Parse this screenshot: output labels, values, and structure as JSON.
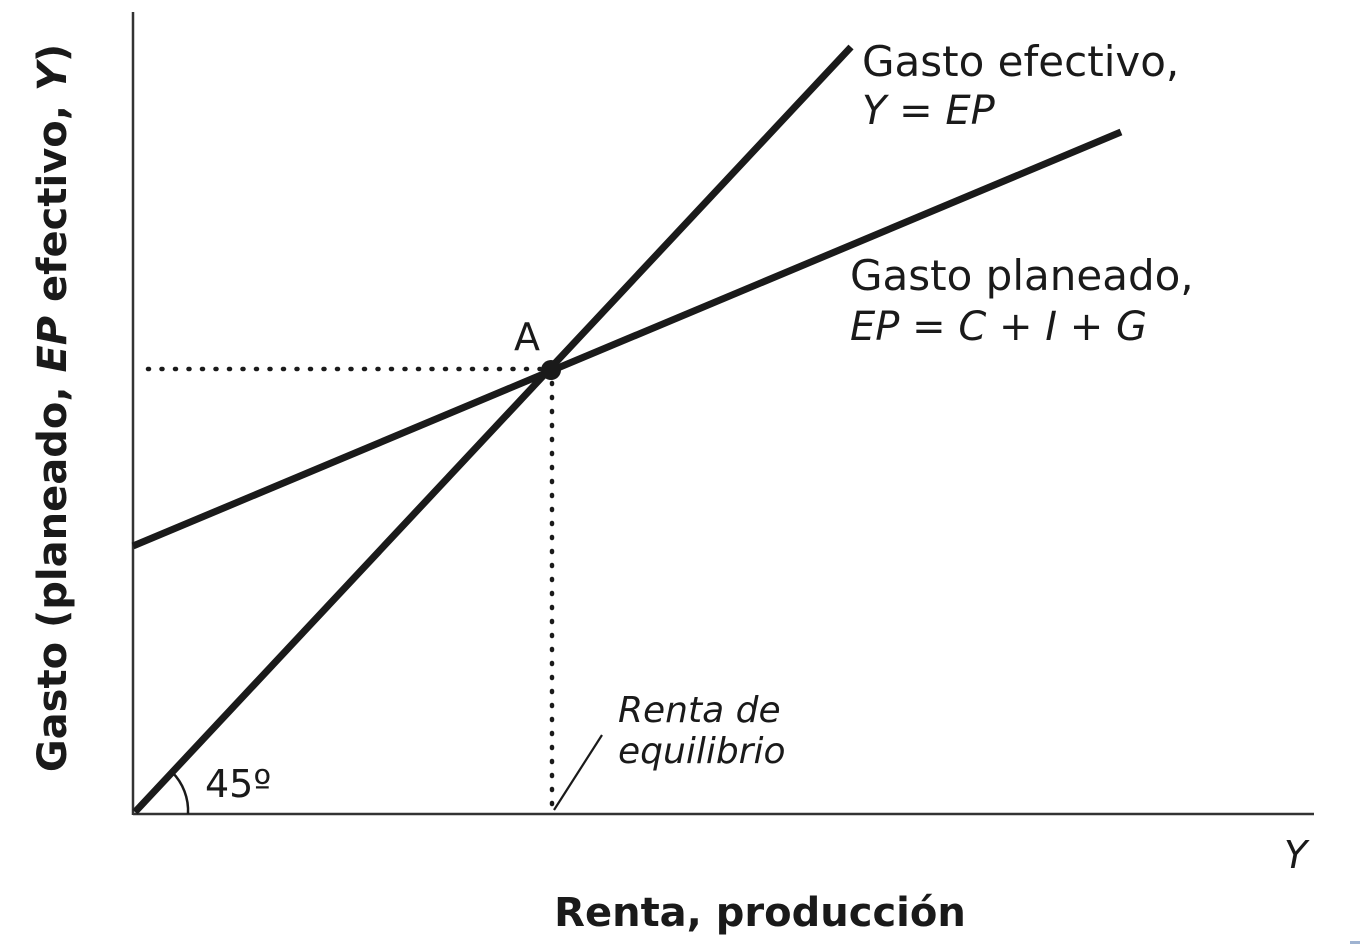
{
  "diagram": {
    "y_axis_label": {
      "prefix": "Gasto (planeado, ",
      "emphasis": "EP",
      "middle": " efectivo, ",
      "variable": "Y",
      "suffix": ")"
    },
    "x_axis_label": "Renta, producción",
    "x_axis_symbol": "Y",
    "actual_line": {
      "label_line1": "Gasto efectivo,",
      "label_line2": "Y = EP"
    },
    "planned_line": {
      "label_line1": "Gasto planeado,",
      "label_line2": "EP = C + I + G"
    },
    "point_label": "A",
    "angle_label": "45º",
    "annotation": {
      "line1": "Renta de",
      "line2": "equilibrio"
    },
    "colors": {
      "ink": "#1a1a1a",
      "axis": "#333333"
    }
  }
}
